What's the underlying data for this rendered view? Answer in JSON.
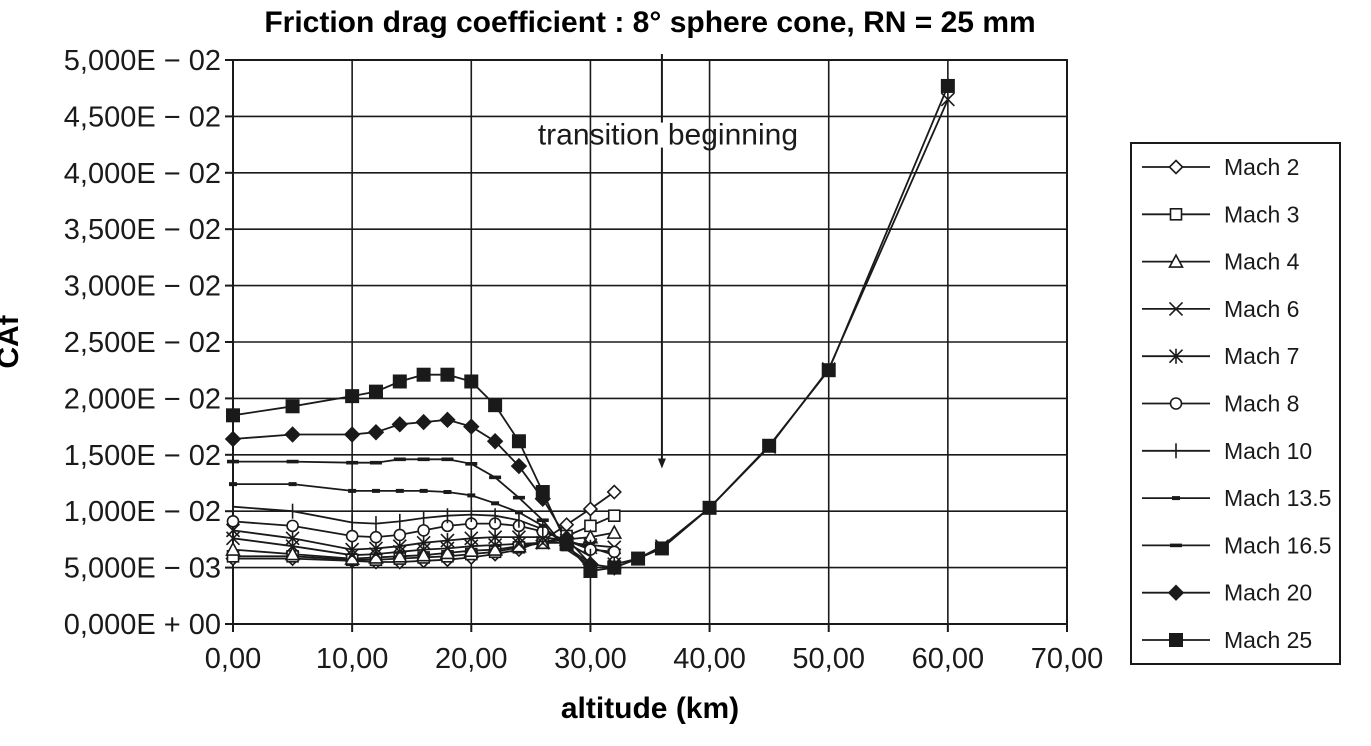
{
  "chart_data": {
    "type": "line",
    "title": "Friction drag coefficient : 8° sphere cone, RN = 25 mm",
    "xlabel": "altitude (km)",
    "ylabel": "CAf",
    "xlim": [
      0,
      70
    ],
    "ylim": [
      0,
      0.05
    ],
    "x_tick_labels": [
      "0,00",
      "10,00",
      "20,00",
      "30,00",
      "40,00",
      "50,00",
      "60,00",
      "70,00"
    ],
    "y_tick_labels": [
      "0,000E + 00",
      "5,000E − 03",
      "1,000E − 02",
      "1,500E − 02",
      "2,000E − 02",
      "2,500E − 02",
      "3,000E − 02",
      "3,500E − 02",
      "4,000E − 02",
      "4,500E − 02",
      "5,000E − 02"
    ],
    "grid": true,
    "legend_position": "right",
    "annotation": {
      "text": "transition beginning",
      "x": 36,
      "y": 0.0145
    },
    "series": [
      {
        "name": "Mach 2",
        "marker": "diamond-open",
        "x": [
          0,
          5,
          10,
          12,
          14,
          16,
          18,
          20,
          22,
          24,
          26,
          28,
          30,
          32
        ],
        "y": [
          0.0058,
          0.0058,
          0.0056,
          0.0055,
          0.0055,
          0.0056,
          0.0057,
          0.0059,
          0.0062,
          0.0066,
          0.0074,
          0.0088,
          0.0102,
          0.0117
        ]
      },
      {
        "name": "Mach 3",
        "marker": "square-open",
        "x": [
          0,
          5,
          10,
          12,
          14,
          16,
          18,
          20,
          22,
          24,
          26,
          28,
          30,
          32
        ],
        "y": [
          0.006,
          0.006,
          0.0057,
          0.0057,
          0.0058,
          0.0059,
          0.006,
          0.0062,
          0.0064,
          0.0068,
          0.0072,
          0.0078,
          0.0087,
          0.0096
        ]
      },
      {
        "name": "Mach 4",
        "marker": "triangle-open",
        "x": [
          0,
          5,
          10,
          12,
          14,
          16,
          18,
          20,
          22,
          24,
          26,
          28,
          30,
          32
        ],
        "y": [
          0.0066,
          0.0062,
          0.0058,
          0.0059,
          0.006,
          0.0061,
          0.0063,
          0.0065,
          0.0066,
          0.0069,
          0.0072,
          0.0075,
          0.0077,
          0.0081
        ]
      },
      {
        "name": "Mach 6",
        "marker": "x",
        "x": [
          0,
          5,
          10,
          12,
          14,
          16,
          18,
          20,
          22,
          24,
          26,
          28,
          30,
          32
        ],
        "y": [
          0.0076,
          0.0069,
          0.0061,
          0.0062,
          0.0064,
          0.0066,
          0.0067,
          0.0069,
          0.007,
          0.0071,
          0.0072,
          0.0072,
          0.007,
          0.0068
        ]
      },
      {
        "name": "Mach 7",
        "marker": "star",
        "x": [
          0,
          5,
          10,
          12,
          14,
          16,
          18,
          20,
          22,
          24,
          26,
          28,
          30,
          32
        ],
        "y": [
          0.0083,
          0.0076,
          0.0066,
          0.0067,
          0.0069,
          0.0072,
          0.0074,
          0.0076,
          0.0077,
          0.0077,
          0.0077,
          0.0074,
          0.0068,
          0.0061
        ]
      },
      {
        "name": "Mach 8",
        "marker": "circle-open",
        "x": [
          0,
          5,
          10,
          12,
          14,
          16,
          18,
          20,
          22,
          24,
          26,
          28,
          30,
          32
        ],
        "y": [
          0.0091,
          0.0087,
          0.0078,
          0.0077,
          0.0079,
          0.0083,
          0.0087,
          0.0089,
          0.0089,
          0.0087,
          0.0082,
          0.0074,
          0.0066,
          0.0064
        ]
      },
      {
        "name": "Mach 10",
        "marker": "plus",
        "x": [
          0,
          5,
          10,
          12,
          14,
          16,
          18,
          20,
          22,
          24,
          26,
          28,
          30
        ],
        "y": [
          0.0104,
          0.01,
          0.009,
          0.0089,
          0.0091,
          0.0094,
          0.0096,
          0.0097,
          0.0096,
          0.0092,
          0.0084,
          0.0072,
          0.006
        ]
      },
      {
        "name": "Mach 13.5",
        "marker": "dash-small",
        "x": [
          0,
          5,
          10,
          12,
          14,
          16,
          18,
          20,
          22,
          24,
          26,
          28,
          30
        ],
        "y": [
          0.0124,
          0.0124,
          0.0118,
          0.0118,
          0.0118,
          0.0118,
          0.0117,
          0.0114,
          0.0107,
          0.0099,
          0.0087,
          0.0068,
          0.0054
        ]
      },
      {
        "name": "Mach 16.5",
        "marker": "dash",
        "x": [
          0,
          5,
          10,
          12,
          14,
          16,
          18,
          20,
          22,
          24,
          26,
          28,
          30
        ],
        "y": [
          0.0144,
          0.0144,
          0.0143,
          0.0143,
          0.0146,
          0.0146,
          0.0146,
          0.0142,
          0.013,
          0.0112,
          0.0092,
          0.0066,
          0.0052
        ]
      },
      {
        "name": "Mach 20",
        "marker": "diamond-filled",
        "x": [
          0,
          5,
          10,
          12,
          14,
          16,
          18,
          20,
          22,
          24,
          26,
          28,
          30,
          32
        ],
        "y": [
          0.0164,
          0.0168,
          0.0168,
          0.017,
          0.0177,
          0.0179,
          0.0181,
          0.0175,
          0.0162,
          0.014,
          0.0111,
          0.0076,
          0.0053,
          0.005
        ]
      },
      {
        "name": "Mach 25",
        "marker": "square-filled",
        "x": [
          0,
          5,
          10,
          12,
          14,
          16,
          18,
          20,
          22,
          24,
          26,
          28,
          30,
          32,
          34,
          36,
          40,
          45,
          50,
          60
        ],
        "y": [
          0.0185,
          0.0193,
          0.0202,
          0.0206,
          0.0215,
          0.0221,
          0.0221,
          0.0215,
          0.0194,
          0.0162,
          0.0117,
          0.0071,
          0.0047,
          0.005,
          0.0058,
          0.0067,
          0.0103,
          0.0158,
          0.0225,
          0.0477
        ]
      }
    ],
    "shared_tail": {
      "x": [
        32,
        34,
        36,
        40,
        45,
        50,
        60
      ],
      "y": [
        0.0053,
        0.0058,
        0.0069,
        0.0103,
        0.0157,
        0.0226,
        0.0465
      ]
    }
  }
}
